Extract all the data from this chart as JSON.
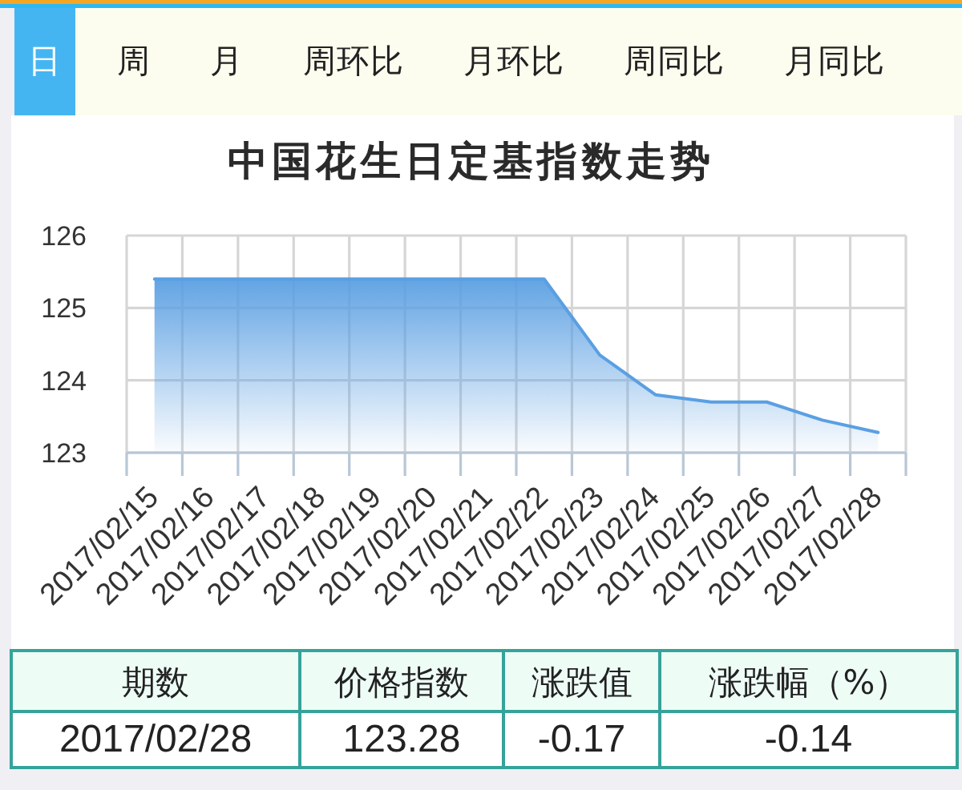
{
  "chart_data": {
    "type": "area",
    "title": "中国花生日定基指数走势",
    "categories": [
      "2017/02/15",
      "2017/02/16",
      "2017/02/17",
      "2017/02/18",
      "2017/02/19",
      "2017/02/20",
      "2017/02/21",
      "2017/02/22",
      "2017/02/23",
      "2017/02/24",
      "2017/02/25",
      "2017/02/26",
      "2017/02/27",
      "2017/02/28"
    ],
    "values": [
      125.4,
      125.4,
      125.4,
      125.4,
      125.4,
      125.4,
      125.4,
      125.4,
      124.35,
      123.8,
      123.7,
      123.7,
      123.45,
      123.28
    ],
    "color": "#5a9fe2",
    "ylim": [
      123,
      126
    ],
    "yticks": [
      123,
      124,
      125,
      126
    ],
    "grid": true,
    "annotations": [
      "日",
      "周",
      "月",
      "周环比",
      "月环比",
      "周同比",
      "月同比",
      "期数",
      "价格指数",
      "涨跌值",
      "涨跌幅（%）",
      "2017/02/28",
      "123.28",
      "-0.17",
      "-0.14"
    ]
  }
}
